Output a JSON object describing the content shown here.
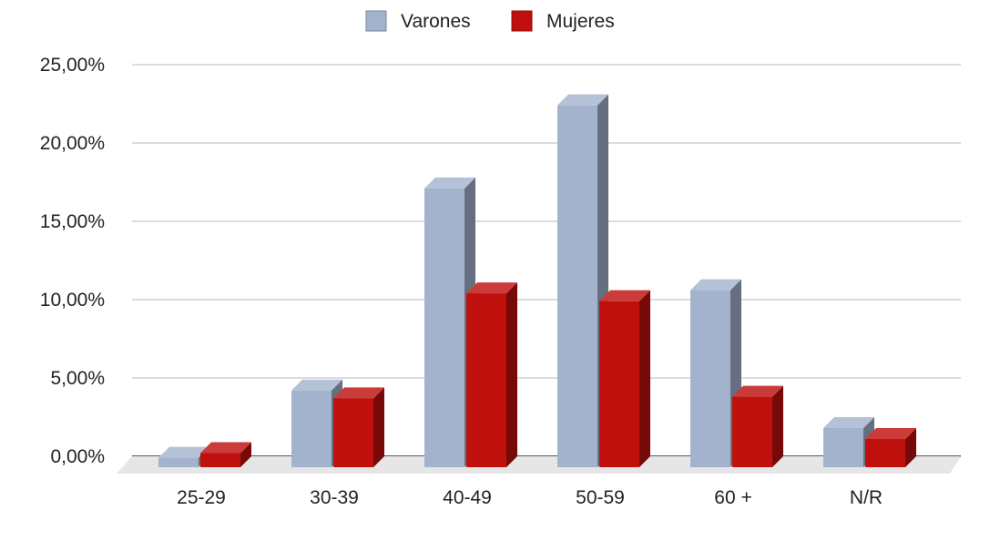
{
  "chart_data": {
    "type": "bar",
    "title": "",
    "xlabel": "",
    "ylabel": "",
    "categories": [
      "25-29",
      "30-39",
      "40-49",
      "50-59",
      "60 +",
      "N/R"
    ],
    "series": [
      {
        "name": "Varones",
        "values": [
          0.6,
          4.9,
          17.8,
          23.1,
          11.3,
          2.5
        ]
      },
      {
        "name": "Mujeres",
        "values": [
          0.9,
          4.4,
          11.1,
          10.6,
          4.5,
          1.8
        ]
      }
    ],
    "ylim": [
      0,
      25
    ],
    "yticks": [
      0,
      5,
      10,
      15,
      20,
      25
    ],
    "ytick_labels": [
      "0,00%",
      "5,00%",
      "10,00%",
      "15,00%",
      "20,00%",
      "25,00%"
    ],
    "grid": true,
    "legend_position": "top-center",
    "bar_style": "3d",
    "colors": {
      "Varones": "#a3b3cd",
      "Mujeres": "#c0100d",
      "grid": "#c8c8c8",
      "axis": "#222222",
      "floor": "#e6e6e6"
    }
  }
}
